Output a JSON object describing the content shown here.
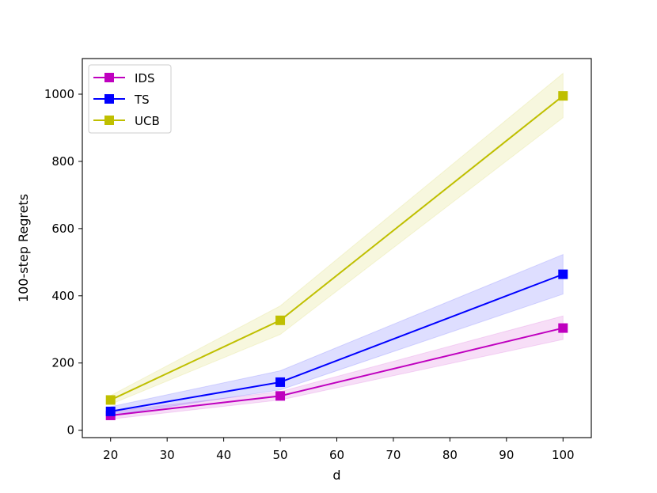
{
  "chart_data": {
    "type": "line",
    "xlabel": "d",
    "ylabel": "100-step Regrets",
    "x": [
      20,
      50,
      100
    ],
    "xlim": [
      15,
      105
    ],
    "ylim": [
      -22,
      1106
    ],
    "xticks": [
      20,
      30,
      40,
      50,
      60,
      70,
      80,
      90,
      100
    ],
    "yticks": [
      0,
      200,
      400,
      600,
      800,
      1000
    ],
    "grid": false,
    "legend_position": "top-left",
    "series": [
      {
        "name": "IDS",
        "color": "#bf00bf",
        "marker": "square",
        "values": [
          44,
          102,
          304
        ],
        "lower": [
          33,
          90,
          270
        ],
        "upper": [
          55,
          115,
          340
        ]
      },
      {
        "name": "TS",
        "color": "#0000ff",
        "marker": "square",
        "values": [
          56,
          143,
          464
        ],
        "lower": [
          44,
          120,
          405
        ],
        "upper": [
          70,
          177,
          523
        ]
      },
      {
        "name": "UCB",
        "color": "#bfbf00",
        "marker": "square",
        "values": [
          90,
          327,
          995
        ],
        "lower": [
          77,
          285,
          930
        ],
        "upper": [
          103,
          370,
          1062
        ]
      }
    ]
  }
}
